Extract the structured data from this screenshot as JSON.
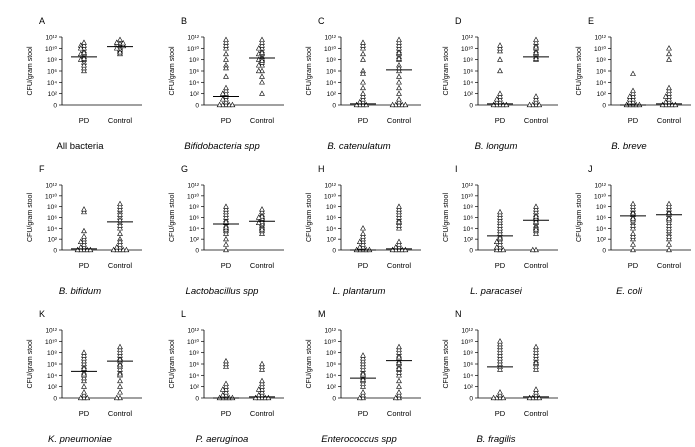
{
  "y_tick_labels": [
    "0",
    "10²",
    "10⁴",
    "10⁶",
    "10⁸",
    "10¹⁰",
    "10¹²"
  ],
  "colors": {
    "ink": "#000000",
    "marker_fill": "#ffffff",
    "background": "#ffffff"
  },
  "marker": "open-triangle",
  "chart_data": [
    {
      "type": "scatter",
      "panel_label": "A",
      "title": "All bacteria",
      "title_italic": false,
      "ylabel": "CFU/gram stool",
      "categories": [
        "PD",
        "Control"
      ],
      "ylim": [
        0,
        12
      ],
      "median": [
        8.5,
        10.3
      ],
      "points": [
        [
          7.5,
          8,
          8.5,
          9,
          9.5,
          10,
          10.5,
          10.5,
          11,
          6,
          6.5,
          7,
          8,
          9,
          10,
          8.2,
          9.2
        ],
        [
          9,
          9.5,
          10,
          10.5,
          11,
          11.2,
          11.5,
          10.8,
          10.2,
          9.8,
          10.6,
          11,
          9.3,
          10,
          10.4,
          10.9
        ]
      ]
    },
    {
      "type": "scatter",
      "panel_label": "B",
      "title": "Bifidobacteria spp",
      "title_italic": true,
      "ylabel": "CFU/gram stool",
      "categories": [
        "PD",
        "Control"
      ],
      "ylim": [
        0,
        12
      ],
      "median": [
        1.5,
        8.3
      ],
      "points": [
        [
          0,
          0,
          0,
          0,
          0.5,
          1,
          1.5,
          2,
          2.5,
          3,
          7,
          8,
          9,
          10,
          10.5,
          11,
          11.5,
          6.5,
          5,
          0,
          1,
          2
        ],
        [
          2,
          4,
          5,
          6,
          7,
          7.5,
          8,
          8.5,
          9,
          9.5,
          10,
          10.5,
          11,
          11.5,
          6,
          7,
          8,
          9,
          10,
          8.2,
          9.2,
          7.8
        ]
      ]
    },
    {
      "type": "scatter",
      "panel_label": "C",
      "title": "B. catenulatum",
      "title_italic": true,
      "ylabel": "CFU/gram stool",
      "categories": [
        "PD",
        "Control"
      ],
      "ylim": [
        0,
        12
      ],
      "median": [
        0.2,
        6.2
      ],
      "points": [
        [
          0,
          0,
          0,
          0,
          0.5,
          1,
          1.5,
          2,
          3,
          4,
          8,
          9,
          10,
          10.5,
          11,
          6,
          5.5,
          0.5
        ],
        [
          0,
          0,
          0,
          0,
          0,
          0.5,
          1,
          2,
          3,
          4,
          5,
          6,
          7,
          8,
          8.5,
          9,
          9.5,
          10,
          10.5,
          11,
          11.5,
          8.2,
          9.2,
          6.5
        ]
      ]
    },
    {
      "type": "scatter",
      "panel_label": "D",
      "title": "B. longum",
      "title_italic": true,
      "ylabel": "CFU/gram stool",
      "categories": [
        "PD",
        "Control"
      ],
      "ylim": [
        0,
        12
      ],
      "median": [
        0.2,
        8.5
      ],
      "points": [
        [
          0,
          0,
          0,
          0,
          0,
          0.5,
          1,
          1.5,
          2,
          6,
          9.5,
          10,
          10.5,
          8,
          0.5,
          1
        ],
        [
          0,
          0,
          0,
          0,
          0.5,
          1,
          1.5,
          8,
          8.5,
          9,
          9.5,
          10,
          10.5,
          11,
          11.5,
          9.2,
          8.2,
          10.2
        ]
      ]
    },
    {
      "type": "scatter",
      "panel_label": "E",
      "title": "B. breve",
      "title_italic": true,
      "ylabel": "CFU/gram stool",
      "categories": [
        "PD",
        "Control"
      ],
      "ylim": [
        0,
        12
      ],
      "median": [
        0,
        0.2
      ],
      "points": [
        [
          0,
          0,
          0,
          0,
          0,
          0.5,
          1,
          1.5,
          2,
          2.5,
          5.5,
          0.5,
          1,
          1.5
        ],
        [
          0,
          0,
          0,
          0,
          0,
          0.5,
          1,
          1.5,
          2,
          2.5,
          3,
          8,
          9,
          10,
          0.5,
          1.5
        ]
      ]
    },
    {
      "type": "scatter",
      "panel_label": "F",
      "title": "B. bifidum",
      "title_italic": true,
      "ylabel": "CFU/gram stool",
      "categories": [
        "PD",
        "Control"
      ],
      "ylim": [
        0,
        12
      ],
      "median": [
        0.2,
        5.2
      ],
      "points": [
        [
          0,
          0,
          0,
          0,
          0,
          0.5,
          1,
          1.5,
          2,
          2.5,
          3.5,
          7,
          7.5,
          0.5,
          1.5
        ],
        [
          0,
          0,
          0,
          0,
          0,
          0.5,
          1,
          2,
          3,
          4,
          5,
          6,
          7,
          7.5,
          8,
          8.5,
          4.5,
          5.5,
          6.5,
          0.5,
          1.5
        ]
      ]
    },
    {
      "type": "scatter",
      "panel_label": "G",
      "title": "Lactobacillus spp",
      "title_italic": true,
      "ylabel": "CFU/gram stool",
      "categories": [
        "PD",
        "Control"
      ],
      "ylim": [
        0,
        12
      ],
      "median": [
        4.8,
        5.3
      ],
      "points": [
        [
          0,
          1,
          2,
          3,
          3.5,
          4,
          4.5,
          5,
          5.5,
          6,
          6.5,
          7,
          7.5,
          8,
          3.8,
          5.2,
          4.2
        ],
        [
          3,
          3.5,
          4,
          4.5,
          5,
          5.5,
          6,
          6.5,
          7,
          7.5,
          4.2,
          4.8,
          5.2,
          5.8,
          6.2,
          3.8,
          5,
          6
        ]
      ]
    },
    {
      "type": "scatter",
      "panel_label": "H",
      "title": "L. plantarum",
      "title_italic": true,
      "ylabel": "CFU/gram stool",
      "categories": [
        "PD",
        "Control"
      ],
      "ylim": [
        0,
        12
      ],
      "median": [
        0,
        0.2
      ],
      "points": [
        [
          0,
          0,
          0,
          0,
          0,
          0.5,
          1,
          1.5,
          2,
          2.5,
          3,
          4,
          0.5,
          1.5
        ],
        [
          0,
          0,
          0,
          0,
          0,
          0.5,
          1,
          1.5,
          4,
          4.5,
          5,
          5.5,
          6,
          6.5,
          7,
          7.5,
          8,
          0.5,
          5.2
        ]
      ]
    },
    {
      "type": "scatter",
      "panel_label": "I",
      "title": "L. paracasei",
      "title_italic": true,
      "ylabel": "CFU/gram stool",
      "categories": [
        "PD",
        "Control"
      ],
      "ylim": [
        0,
        12
      ],
      "median": [
        2.6,
        5.5
      ],
      "points": [
        [
          0,
          0,
          0,
          0.5,
          1,
          1.5,
          2,
          2.5,
          3,
          3.5,
          4,
          4.5,
          5,
          5.5,
          6,
          6.5,
          7,
          0.5,
          1.5,
          2.2
        ],
        [
          0,
          0,
          3,
          3.5,
          4,
          4.5,
          5,
          5.5,
          6,
          6.5,
          7,
          7.5,
          8,
          4.2,
          5.2,
          5.8,
          6.2,
          3.8
        ]
      ]
    },
    {
      "type": "scatter",
      "panel_label": "J",
      "title": "E. coli",
      "title_italic": true,
      "ylabel": "CFU/gram stool",
      "categories": [
        "PD",
        "Control"
      ],
      "ylim": [
        0,
        12
      ],
      "median": [
        6.3,
        6.5
      ],
      "points": [
        [
          0,
          1,
          2,
          2.5,
          3,
          4,
          5,
          5.5,
          6,
          6.5,
          7,
          7.5,
          8,
          8.5,
          5.8,
          6.8,
          4.5
        ],
        [
          0,
          1,
          2,
          3,
          3.5,
          4,
          4.5,
          5,
          5.5,
          6,
          6.5,
          7,
          7.5,
          8,
          8.5,
          5.8,
          6.8,
          2.5
        ]
      ]
    },
    {
      "type": "scatter",
      "panel_label": "K",
      "title": "K. pneumoniae",
      "title_italic": true,
      "ylabel": "CFU/gram stool",
      "categories": [
        "PD",
        "Control"
      ],
      "ylim": [
        0,
        12
      ],
      "median": [
        4.7,
        6.5
      ],
      "points": [
        [
          0,
          0,
          0,
          0.5,
          1,
          2,
          3,
          3.5,
          4,
          4.5,
          5,
          5.5,
          6,
          6.5,
          7,
          7.5,
          8,
          4.2,
          5.2
        ],
        [
          0,
          0,
          1,
          2,
          3,
          4,
          4.5,
          5,
          5.5,
          6,
          6.5,
          7,
          7.5,
          8,
          8.5,
          9,
          5.8,
          6.8,
          4.2
        ]
      ]
    },
    {
      "type": "scatter",
      "panel_label": "L",
      "title": "P. aeruginoa",
      "title_italic": true,
      "ylabel": "CFU/gram stool",
      "categories": [
        "PD",
        "Control"
      ],
      "ylim": [
        0,
        12
      ],
      "median": [
        0,
        0.2
      ],
      "points": [
        [
          0,
          0,
          0,
          0,
          0,
          0.5,
          1,
          1.5,
          2,
          2.5,
          5.5,
          6,
          6.5,
          0.5,
          1.5
        ],
        [
          0,
          0,
          0,
          0,
          0,
          0.5,
          1,
          1.5,
          2,
          2.5,
          3,
          5,
          5.5,
          6,
          0.5,
          1.5
        ]
      ]
    },
    {
      "type": "scatter",
      "panel_label": "M",
      "title": "Enterococcus spp",
      "title_italic": true,
      "ylabel": "CFU/gram stool",
      "categories": [
        "PD",
        "Control"
      ],
      "ylim": [
        0,
        12
      ],
      "median": [
        3.5,
        6.6
      ],
      "points": [
        [
          0,
          0,
          0.5,
          1,
          2,
          2.5,
          3,
          3.5,
          4,
          4.5,
          5,
          5.5,
          6,
          6.5,
          7,
          7.5,
          3.2,
          4.2
        ],
        [
          0,
          0,
          0.5,
          1,
          2,
          3,
          4,
          4.5,
          5,
          5.5,
          6,
          6.5,
          7,
          7.5,
          8,
          8.5,
          9,
          6.2,
          5.2,
          7.2
        ]
      ]
    },
    {
      "type": "scatter",
      "panel_label": "N",
      "title": "B. fragilis",
      "title_italic": true,
      "ylabel": "CFU/gram stool",
      "categories": [
        "PD",
        "Control"
      ],
      "ylim": [
        0,
        12
      ],
      "median": [
        5.5,
        0.2
      ],
      "points": [
        [
          0,
          0,
          0,
          0,
          0.5,
          1,
          5,
          5.5,
          6,
          6.5,
          7,
          7.5,
          8,
          8.5,
          9,
          9.5,
          10
        ],
        [
          0,
          0,
          0,
          0,
          0.5,
          1,
          1.5,
          5,
          5.5,
          6,
          6.5,
          7,
          7.5,
          8,
          8.5,
          9,
          6.2
        ]
      ]
    }
  ]
}
